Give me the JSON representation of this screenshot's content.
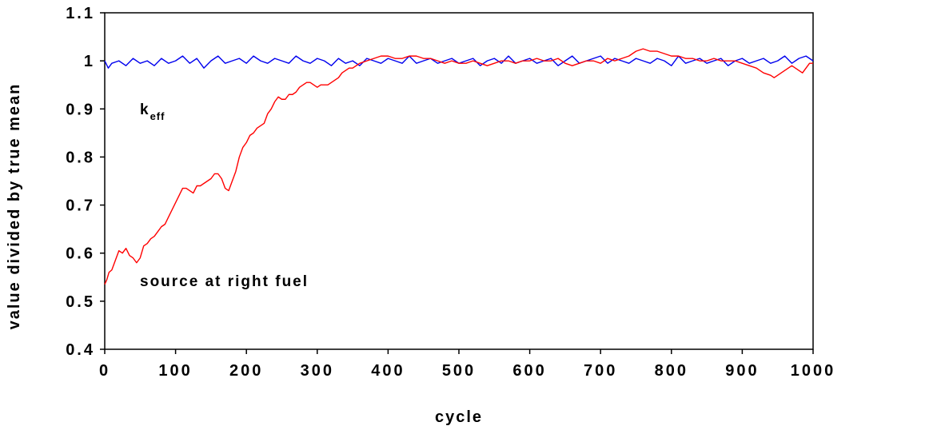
{
  "chart_data": {
    "type": "line",
    "title": "",
    "xlabel": "cycle",
    "ylabel": "value divided by true mean",
    "xlim": [
      0,
      1000
    ],
    "ylim": [
      0.4,
      1.1
    ],
    "xticks": [
      0,
      100,
      200,
      300,
      400,
      500,
      600,
      700,
      800,
      900,
      1000
    ],
    "yticks": [
      0.4,
      0.5,
      0.6,
      0.7,
      0.8,
      0.9,
      1,
      1.1
    ],
    "xtick_labels": [
      "0",
      "100",
      "200",
      "300",
      "400",
      "500",
      "600",
      "700",
      "800",
      "900",
      "1000"
    ],
    "ytick_labels": [
      "0.4",
      "0.5",
      "0.6",
      "0.7",
      "0.8",
      "0.9",
      "1",
      "1.1"
    ],
    "grid": false,
    "legend": "none",
    "annotations": {
      "keff_main": "k",
      "keff_sub": "eff",
      "source": "source at right fuel"
    },
    "series": [
      {
        "color": "#0000ee",
        "points": [
          [
            0,
            1.0
          ],
          [
            5,
            0.985
          ],
          [
            10,
            0.995
          ],
          [
            20,
            1.0
          ],
          [
            30,
            0.99
          ],
          [
            40,
            1.005
          ],
          [
            50,
            0.995
          ],
          [
            60,
            1.0
          ],
          [
            70,
            0.99
          ],
          [
            80,
            1.005
          ],
          [
            90,
            0.995
          ],
          [
            100,
            1.0
          ],
          [
            110,
            1.01
          ],
          [
            120,
            0.995
          ],
          [
            130,
            1.005
          ],
          [
            140,
            0.985
          ],
          [
            150,
            1.0
          ],
          [
            160,
            1.01
          ],
          [
            170,
            0.995
          ],
          [
            180,
            1.0
          ],
          [
            190,
            1.005
          ],
          [
            200,
            0.995
          ],
          [
            210,
            1.01
          ],
          [
            220,
            1.0
          ],
          [
            230,
            0.995
          ],
          [
            240,
            1.005
          ],
          [
            250,
            1.0
          ],
          [
            260,
            0.995
          ],
          [
            270,
            1.01
          ],
          [
            280,
            1.0
          ],
          [
            290,
            0.995
          ],
          [
            300,
            1.005
          ],
          [
            310,
            1.0
          ],
          [
            320,
            0.99
          ],
          [
            330,
            1.005
          ],
          [
            340,
            0.995
          ],
          [
            350,
            1.0
          ],
          [
            360,
            0.99
          ],
          [
            370,
            1.005
          ],
          [
            380,
            1.0
          ],
          [
            390,
            0.995
          ],
          [
            400,
            1.005
          ],
          [
            410,
            1.0
          ],
          [
            420,
            0.995
          ],
          [
            430,
            1.01
          ],
          [
            440,
            0.995
          ],
          [
            450,
            1.0
          ],
          [
            460,
            1.005
          ],
          [
            470,
            0.995
          ],
          [
            480,
            1.0
          ],
          [
            490,
            1.005
          ],
          [
            500,
            0.995
          ],
          [
            510,
            1.0
          ],
          [
            520,
            1.005
          ],
          [
            530,
            0.99
          ],
          [
            540,
            1.0
          ],
          [
            550,
            1.005
          ],
          [
            560,
            0.995
          ],
          [
            570,
            1.01
          ],
          [
            580,
            0.995
          ],
          [
            590,
            1.0
          ],
          [
            600,
            1.005
          ],
          [
            610,
            0.995
          ],
          [
            620,
            1.0
          ],
          [
            630,
            1.005
          ],
          [
            640,
            0.99
          ],
          [
            650,
            1.0
          ],
          [
            660,
            1.01
          ],
          [
            670,
            0.995
          ],
          [
            680,
            1.0
          ],
          [
            690,
            1.005
          ],
          [
            700,
            1.01
          ],
          [
            710,
            0.995
          ],
          [
            720,
            1.005
          ],
          [
            730,
            1.0
          ],
          [
            740,
            0.995
          ],
          [
            750,
            1.005
          ],
          [
            760,
            1.0
          ],
          [
            770,
            0.995
          ],
          [
            780,
            1.005
          ],
          [
            790,
            1.0
          ],
          [
            800,
            0.99
          ],
          [
            810,
            1.01
          ],
          [
            820,
            0.995
          ],
          [
            830,
            1.0
          ],
          [
            840,
            1.005
          ],
          [
            850,
            0.995
          ],
          [
            860,
            1.0
          ],
          [
            870,
            1.005
          ],
          [
            880,
            0.99
          ],
          [
            890,
            1.0
          ],
          [
            900,
            1.005
          ],
          [
            910,
            0.995
          ],
          [
            920,
            1.0
          ],
          [
            930,
            1.005
          ],
          [
            940,
            0.995
          ],
          [
            950,
            1.0
          ],
          [
            960,
            1.01
          ],
          [
            970,
            0.995
          ],
          [
            980,
            1.005
          ],
          [
            990,
            1.01
          ],
          [
            1000,
            1.0
          ]
        ]
      },
      {
        "color": "#ff0000",
        "points": [
          [
            0,
            0.535
          ],
          [
            3,
            0.545
          ],
          [
            6,
            0.56
          ],
          [
            10,
            0.565
          ],
          [
            15,
            0.585
          ],
          [
            20,
            0.605
          ],
          [
            25,
            0.6
          ],
          [
            30,
            0.61
          ],
          [
            35,
            0.595
          ],
          [
            40,
            0.59
          ],
          [
            45,
            0.58
          ],
          [
            50,
            0.59
          ],
          [
            55,
            0.615
          ],
          [
            60,
            0.62
          ],
          [
            65,
            0.63
          ],
          [
            70,
            0.635
          ],
          [
            75,
            0.645
          ],
          [
            80,
            0.655
          ],
          [
            85,
            0.66
          ],
          [
            90,
            0.675
          ],
          [
            95,
            0.69
          ],
          [
            100,
            0.705
          ],
          [
            105,
            0.72
          ],
          [
            110,
            0.735
          ],
          [
            115,
            0.735
          ],
          [
            120,
            0.73
          ],
          [
            125,
            0.725
          ],
          [
            130,
            0.74
          ],
          [
            135,
            0.74
          ],
          [
            140,
            0.745
          ],
          [
            145,
            0.75
          ],
          [
            150,
            0.755
          ],
          [
            155,
            0.765
          ],
          [
            160,
            0.765
          ],
          [
            165,
            0.755
          ],
          [
            170,
            0.735
          ],
          [
            175,
            0.73
          ],
          [
            180,
            0.75
          ],
          [
            185,
            0.77
          ],
          [
            190,
            0.8
          ],
          [
            195,
            0.82
          ],
          [
            200,
            0.83
          ],
          [
            205,
            0.845
          ],
          [
            210,
            0.85
          ],
          [
            215,
            0.86
          ],
          [
            220,
            0.865
          ],
          [
            225,
            0.87
          ],
          [
            230,
            0.89
          ],
          [
            235,
            0.9
          ],
          [
            240,
            0.915
          ],
          [
            245,
            0.925
          ],
          [
            250,
            0.92
          ],
          [
            255,
            0.92
          ],
          [
            260,
            0.93
          ],
          [
            265,
            0.93
          ],
          [
            270,
            0.935
          ],
          [
            275,
            0.945
          ],
          [
            280,
            0.95
          ],
          [
            285,
            0.955
          ],
          [
            290,
            0.955
          ],
          [
            295,
            0.95
          ],
          [
            300,
            0.945
          ],
          [
            305,
            0.95
          ],
          [
            310,
            0.95
          ],
          [
            315,
            0.95
          ],
          [
            320,
            0.955
          ],
          [
            325,
            0.96
          ],
          [
            330,
            0.965
          ],
          [
            335,
            0.975
          ],
          [
            340,
            0.98
          ],
          [
            345,
            0.985
          ],
          [
            350,
            0.985
          ],
          [
            355,
            0.99
          ],
          [
            360,
            0.995
          ],
          [
            370,
            1.0
          ],
          [
            380,
            1.005
          ],
          [
            390,
            1.01
          ],
          [
            400,
            1.01
          ],
          [
            410,
            1.005
          ],
          [
            420,
            1.005
          ],
          [
            430,
            1.01
          ],
          [
            440,
            1.01
          ],
          [
            450,
            1.005
          ],
          [
            460,
            1.005
          ],
          [
            470,
            1.0
          ],
          [
            480,
            0.995
          ],
          [
            490,
            1.0
          ],
          [
            500,
            0.995
          ],
          [
            510,
            0.995
          ],
          [
            520,
            1.0
          ],
          [
            530,
            0.995
          ],
          [
            540,
            0.99
          ],
          [
            550,
            0.995
          ],
          [
            560,
            1.0
          ],
          [
            570,
            1.0
          ],
          [
            580,
            0.995
          ],
          [
            590,
            1.0
          ],
          [
            600,
            1.0
          ],
          [
            610,
            1.005
          ],
          [
            620,
            1.0
          ],
          [
            630,
            1.0
          ],
          [
            640,
            1.005
          ],
          [
            650,
            0.995
          ],
          [
            660,
            0.99
          ],
          [
            670,
            0.995
          ],
          [
            680,
            1.0
          ],
          [
            690,
            1.0
          ],
          [
            700,
            0.995
          ],
          [
            710,
            1.005
          ],
          [
            720,
            1.0
          ],
          [
            730,
            1.005
          ],
          [
            740,
            1.01
          ],
          [
            750,
            1.02
          ],
          [
            760,
            1.025
          ],
          [
            770,
            1.02
          ],
          [
            780,
            1.02
          ],
          [
            790,
            1.015
          ],
          [
            800,
            1.01
          ],
          [
            810,
            1.01
          ],
          [
            820,
            1.005
          ],
          [
            830,
            1.005
          ],
          [
            840,
            1.0
          ],
          [
            850,
            1.0
          ],
          [
            860,
            1.005
          ],
          [
            870,
            1.0
          ],
          [
            880,
            1.0
          ],
          [
            890,
            1.0
          ],
          [
            900,
            0.995
          ],
          [
            910,
            0.99
          ],
          [
            920,
            0.985
          ],
          [
            930,
            0.975
          ],
          [
            940,
            0.97
          ],
          [
            945,
            0.965
          ],
          [
            950,
            0.97
          ],
          [
            960,
            0.98
          ],
          [
            970,
            0.99
          ],
          [
            975,
            0.985
          ],
          [
            980,
            0.98
          ],
          [
            985,
            0.975
          ],
          [
            990,
            0.985
          ],
          [
            995,
            0.995
          ],
          [
            1000,
            0.995
          ]
        ]
      }
    ]
  }
}
